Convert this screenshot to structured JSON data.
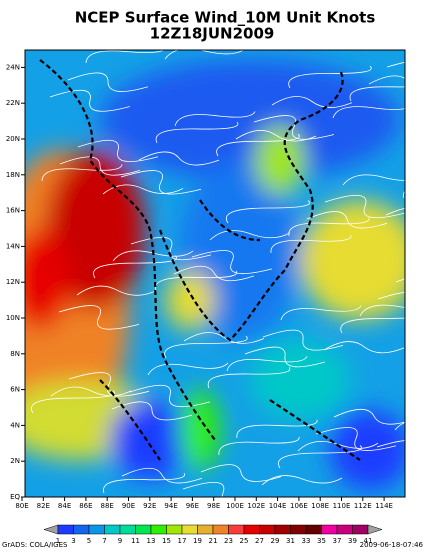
{
  "header": {
    "title": "NCEP Surface Wind_10M Unit Knots",
    "subtitle": "12Z18JUN2009"
  },
  "x_axis": {
    "labels": [
      "80E",
      "82E",
      "84E",
      "86E",
      "88E",
      "90E",
      "92E",
      "94E",
      "96E",
      "98E",
      "100E",
      "102E",
      "104E",
      "106E",
      "108E",
      "110E",
      "112E",
      "114E"
    ]
  },
  "y_axis": {
    "labels": [
      "EQ",
      "2N",
      "4N",
      "6N",
      "8N",
      "10N",
      "12N",
      "14N",
      "16N",
      "18N",
      "20N",
      "22N",
      "24N"
    ]
  },
  "colorbar": {
    "levels": [
      1,
      3,
      5,
      7,
      9,
      11,
      13,
      15,
      17,
      19,
      21,
      23,
      25,
      27,
      29,
      31,
      33,
      35,
      37,
      39,
      41
    ],
    "colors": [
      "#a0a0a0",
      "#1e3cff",
      "#1464f0",
      "#0a96e6",
      "#00c8c8",
      "#00dc9a",
      "#00e650",
      "#30f000",
      "#a0e600",
      "#e6dc32",
      "#e6af2d",
      "#f08228",
      "#fa3c3c",
      "#e60000",
      "#c80000",
      "#a00000",
      "#820000",
      "#640000",
      "#f000a0",
      "#c8007a",
      "#a00064",
      "#a0a0a0"
    ]
  },
  "footer": {
    "left": "GrADS: COLA/IGES",
    "right": "2009-06-18-07:46"
  }
}
